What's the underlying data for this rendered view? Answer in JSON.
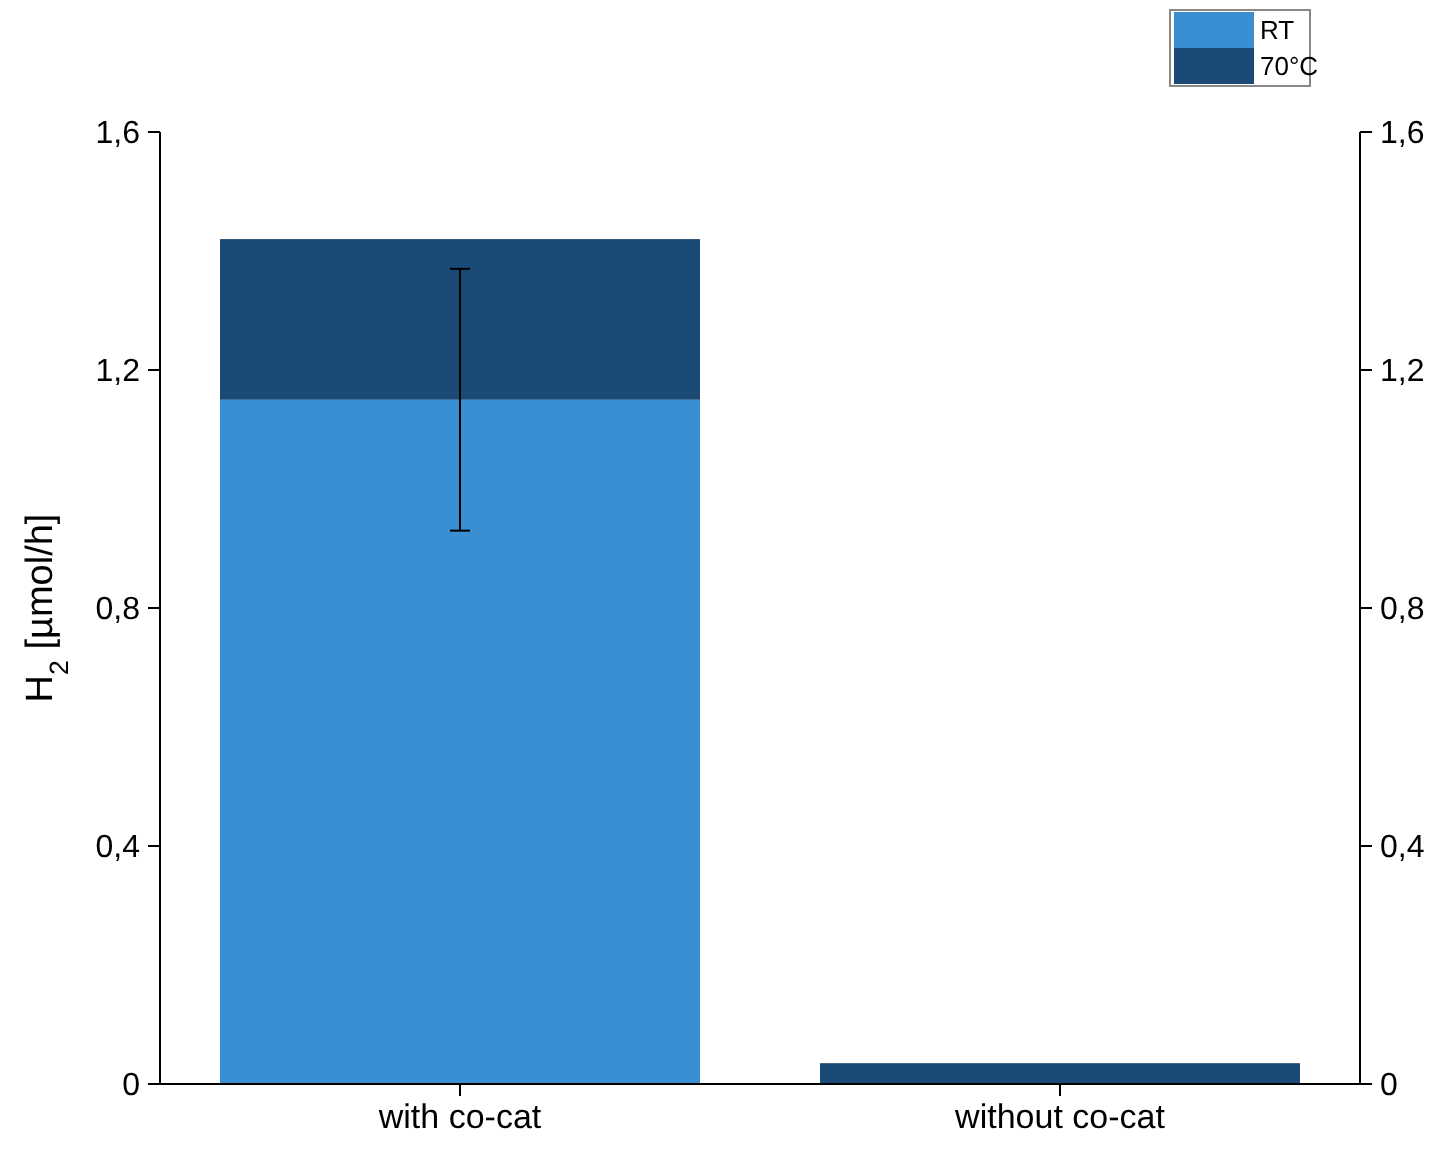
{
  "chart_data": {
    "type": "bar",
    "stacked": true,
    "ylabel": "H$_{2}$ [µmol/h]",
    "categories": [
      "with co-cat",
      "without co-cat"
    ],
    "series": [
      {
        "name": "RT",
        "color": "#3a8fd3",
        "values": [
          1.15,
          0
        ],
        "errors": [
          0.22,
          null
        ]
      },
      {
        "name": "70°C",
        "color": "#1a4a75",
        "values": [
          0.27,
          0.035
        ]
      }
    ],
    "ylim": [
      0,
      1.6
    ],
    "yticks": [
      0,
      {
        "value": 0.4,
        "label": "0,4"
      },
      {
        "value": 0.8,
        "label": "0,8"
      },
      {
        "value": 1.2,
        "label": "1,2"
      },
      {
        "value": 1.6,
        "label": "1,6"
      }
    ],
    "y2lim": [
      0,
      1.6
    ],
    "y2ticks": [
      0,
      {
        "value": 0.4,
        "label": "0,4"
      },
      {
        "value": 0.8,
        "label": "0,8"
      },
      {
        "value": 1.2,
        "label": "1,2"
      },
      {
        "value": 1.6,
        "label": "1,6"
      }
    ],
    "legend": "top right",
    "grid": false
  }
}
